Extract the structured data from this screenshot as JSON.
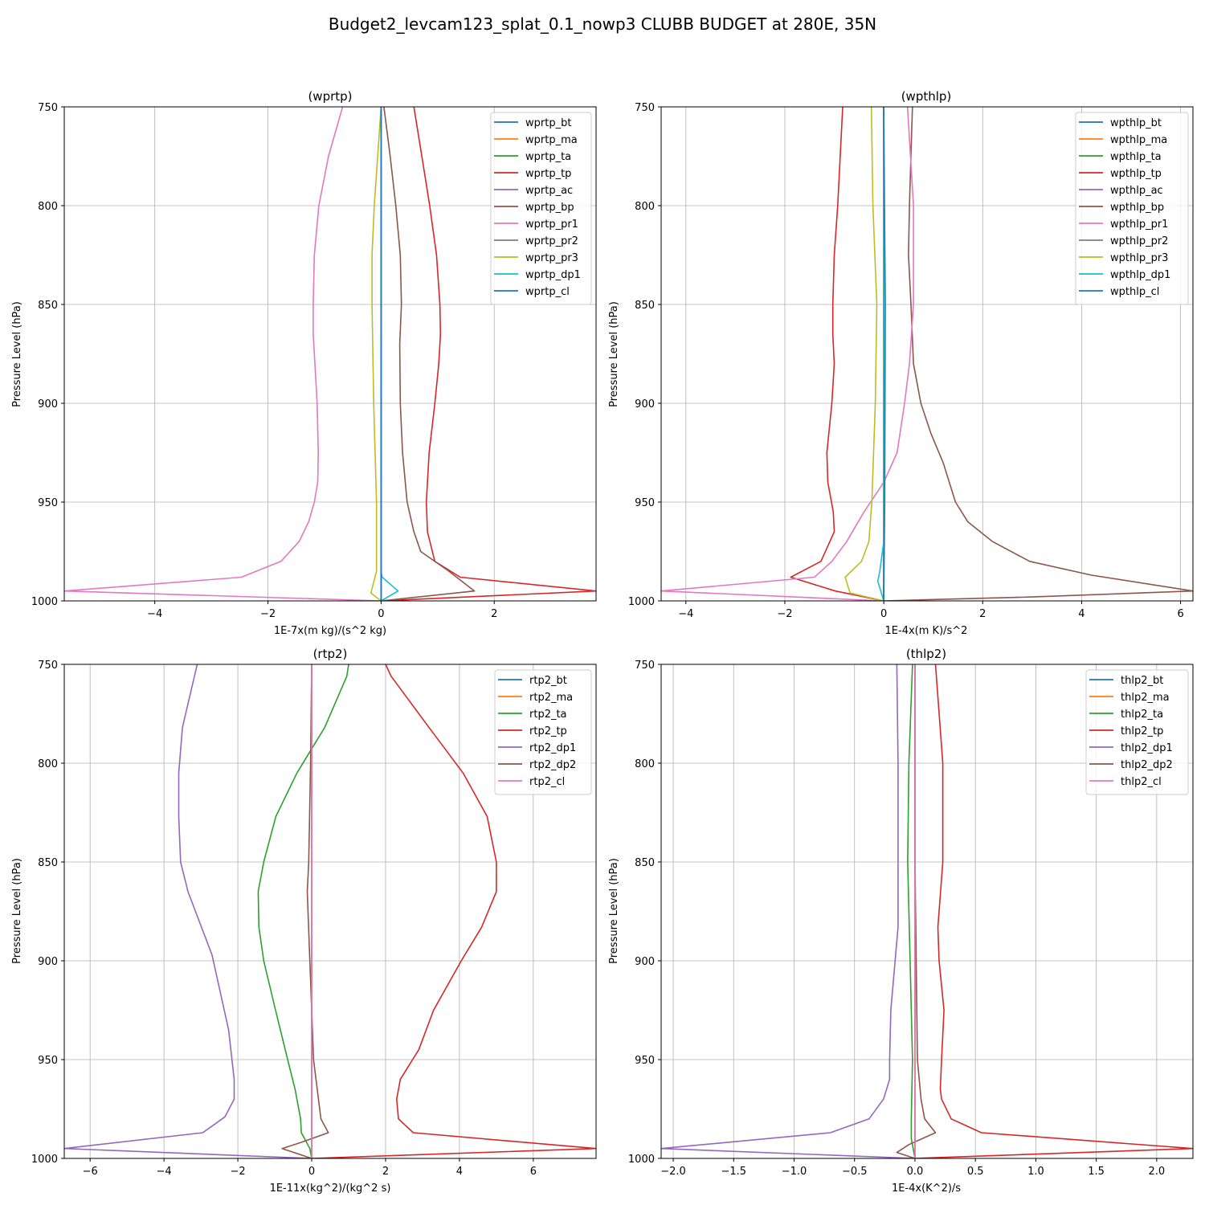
{
  "title": "Budget2_levcam123_splat_0.1_nowp3 CLUBB BUDGET at 280E, 35N",
  "chart_data": [
    {
      "type": "line",
      "title": "(wprtp)",
      "xlabel": "1E-7x(m kg)/(s^2 kg)",
      "ylabel": "Pressure Level (hPa)",
      "xlim": [
        -5.6,
        3.8
      ],
      "ylim": [
        1000,
        750
      ],
      "xticks": [
        -4,
        -2,
        0,
        2
      ],
      "xtick_labels": [
        "−4",
        "−2",
        "0",
        "2"
      ],
      "yticks": [
        750,
        800,
        850,
        900,
        950,
        1000
      ],
      "ytick_labels": [
        "750",
        "800",
        "850",
        "900",
        "950",
        "1000"
      ],
      "grid": true,
      "legend_loc": "upper right",
      "series": [
        {
          "name": "wprtp_bt",
          "color": "#1f77b4",
          "p": [
            750,
            1000
          ],
          "x": [
            0.0,
            0.0
          ]
        },
        {
          "name": "wprtp_ma",
          "color": "#ff7f0e",
          "p": [
            750,
            1000
          ],
          "x": [
            0.0,
            0.0
          ]
        },
        {
          "name": "wprtp_ta",
          "color": "#2ca02c",
          "p": [
            750,
            850,
            950,
            985,
            995,
            1000
          ],
          "x": [
            0.0,
            0.0,
            0.0,
            0.0,
            0.0,
            0.0
          ]
        },
        {
          "name": "wprtp_tp",
          "color": "#d62728",
          "p": [
            750,
            775,
            800,
            825,
            850,
            865,
            880,
            900,
            925,
            950,
            965,
            980,
            988,
            995,
            1000
          ],
          "x": [
            0.58,
            0.72,
            0.86,
            0.98,
            1.04,
            1.05,
            1.02,
            0.95,
            0.85,
            0.8,
            0.82,
            0.95,
            1.4,
            3.8,
            0.0
          ]
        },
        {
          "name": "wprtp_ac",
          "color": "#9467bd",
          "p": [
            750,
            1000
          ],
          "x": [
            0.0,
            0.0
          ]
        },
        {
          "name": "wprtp_bp",
          "color": "#8c564b",
          "p": [
            750,
            775,
            800,
            825,
            850,
            870,
            900,
            925,
            950,
            965,
            975,
            985,
            995,
            1000
          ],
          "x": [
            0.05,
            0.16,
            0.26,
            0.34,
            0.36,
            0.33,
            0.34,
            0.38,
            0.46,
            0.58,
            0.7,
            1.2,
            1.65,
            0.0
          ]
        },
        {
          "name": "wprtp_pr1",
          "color": "#e377c2",
          "p": [
            750,
            775,
            800,
            825,
            850,
            865,
            880,
            900,
            925,
            940,
            950,
            960,
            970,
            980,
            988,
            995,
            1000
          ],
          "x": [
            -0.68,
            -0.93,
            -1.1,
            -1.18,
            -1.2,
            -1.2,
            -1.17,
            -1.13,
            -1.11,
            -1.12,
            -1.18,
            -1.28,
            -1.45,
            -1.77,
            -2.47,
            -5.6,
            0.0
          ]
        },
        {
          "name": "wprtp_pr2",
          "color": "#7f7f7f",
          "p": [
            750,
            1000
          ],
          "x": [
            0.0,
            0.0
          ]
        },
        {
          "name": "wprtp_pr3",
          "color": "#bcbd22",
          "p": [
            750,
            800,
            825,
            850,
            900,
            950,
            985,
            996,
            1000
          ],
          "x": [
            0.0,
            -0.12,
            -0.16,
            -0.16,
            -0.13,
            -0.08,
            -0.08,
            -0.18,
            0.0
          ]
        },
        {
          "name": "wprtp_dp1",
          "color": "#17becf",
          "p": [
            750,
            985,
            988,
            995,
            1000
          ],
          "x": [
            0.0,
            0.0,
            0.02,
            0.3,
            0.0
          ]
        },
        {
          "name": "wprtp_cl",
          "color": "#1f77b4",
          "p": [
            750,
            1000
          ],
          "x": [
            0.0,
            0.0
          ]
        }
      ]
    },
    {
      "type": "line",
      "title": "(wpthlp)",
      "xlabel": "1E-4x(m K)/s^2",
      "ylabel": "Pressure Level (hPa)",
      "xlim": [
        -4.5,
        6.25
      ],
      "ylim": [
        1000,
        750
      ],
      "xticks": [
        -4,
        -2,
        0,
        2,
        4,
        6
      ],
      "xtick_labels": [
        "−4",
        "−2",
        "0",
        "2",
        "4",
        "6"
      ],
      "yticks": [
        750,
        800,
        850,
        900,
        950,
        1000
      ],
      "ytick_labels": [
        "750",
        "800",
        "850",
        "900",
        "950",
        "1000"
      ],
      "grid": true,
      "legend_loc": "upper right",
      "series": [
        {
          "name": "wpthlp_bt",
          "color": "#1f77b4",
          "p": [
            750,
            1000
          ],
          "x": [
            0.0,
            0.0
          ]
        },
        {
          "name": "wpthlp_ma",
          "color": "#ff7f0e",
          "p": [
            750,
            1000
          ],
          "x": [
            0.0,
            0.0
          ]
        },
        {
          "name": "wpthlp_ta",
          "color": "#2ca02c",
          "p": [
            750,
            850,
            950,
            1000
          ],
          "x": [
            0.0,
            0.0,
            0.0,
            0.0
          ]
        },
        {
          "name": "wpthlp_tp",
          "color": "#d62728",
          "p": [
            750,
            800,
            825,
            850,
            865,
            880,
            900,
            925,
            940,
            955,
            965,
            980,
            988,
            995,
            1000
          ],
          "x": [
            -0.83,
            -0.93,
            -1.0,
            -1.03,
            -1.03,
            -1.0,
            -1.05,
            -1.15,
            -1.13,
            -1.02,
            -1.0,
            -1.27,
            -1.88,
            -0.98,
            0.0
          ]
        },
        {
          "name": "wpthlp_ac",
          "color": "#9467bd",
          "p": [
            750,
            1000
          ],
          "x": [
            0.0,
            0.0
          ]
        },
        {
          "name": "wpthlp_bp",
          "color": "#8c564b",
          "p": [
            750,
            800,
            825,
            850,
            880,
            900,
            915,
            930,
            950,
            960,
            970,
            980,
            987,
            995,
            998,
            1000
          ],
          "x": [
            0.58,
            0.52,
            0.5,
            0.55,
            0.6,
            0.75,
            0.95,
            1.2,
            1.45,
            1.7,
            2.2,
            2.95,
            4.2,
            6.25,
            3.0,
            0.0
          ]
        },
        {
          "name": "wpthlp_pr1",
          "color": "#e377c2",
          "p": [
            750,
            800,
            850,
            880,
            900,
            925,
            940,
            955,
            970,
            980,
            988,
            995,
            1000
          ],
          "x": [
            0.48,
            0.6,
            0.6,
            0.52,
            0.42,
            0.27,
            0.0,
            -0.4,
            -0.75,
            -1.05,
            -1.4,
            -4.5,
            0.0
          ]
        },
        {
          "name": "wpthlp_pr2",
          "color": "#7f7f7f",
          "p": [
            750,
            1000
          ],
          "x": [
            0.0,
            0.0
          ]
        },
        {
          "name": "wpthlp_pr3",
          "color": "#bcbd22",
          "p": [
            750,
            800,
            850,
            900,
            950,
            970,
            980,
            988,
            996,
            1000
          ],
          "x": [
            -0.25,
            -0.22,
            -0.14,
            -0.17,
            -0.24,
            -0.3,
            -0.45,
            -0.78,
            -0.68,
            0.0
          ]
        },
        {
          "name": "wpthlp_dp1",
          "color": "#17becf",
          "p": [
            750,
            970,
            985,
            990,
            1000
          ],
          "x": [
            0.0,
            0.0,
            -0.08,
            -0.12,
            0.0
          ]
        },
        {
          "name": "wpthlp_cl",
          "color": "#1f77b4",
          "p": [
            750,
            850,
            950,
            1000
          ],
          "x": [
            0.0,
            0.03,
            0.02,
            0.0
          ]
        }
      ]
    },
    {
      "type": "line",
      "title": "(rtp2)",
      "xlabel": "1E-11x(kg^2)/(kg^2 s)",
      "ylabel": "Pressure Level (hPa)",
      "xlim": [
        -6.7,
        7.7
      ],
      "ylim": [
        1000,
        750
      ],
      "xticks": [
        -6,
        -4,
        -2,
        0,
        2,
        4,
        6
      ],
      "xtick_labels": [
        "−6",
        "−4",
        "−2",
        "0",
        "2",
        "4",
        "6"
      ],
      "yticks": [
        750,
        800,
        850,
        900,
        950,
        1000
      ],
      "ytick_labels": [
        "750",
        "800",
        "850",
        "900",
        "950",
        "1000"
      ],
      "grid": true,
      "legend_loc": "upper right",
      "series": [
        {
          "name": "rtp2_bt",
          "color": "#1f77b4",
          "p": [
            750,
            1000
          ],
          "x": [
            0.0,
            0.0
          ]
        },
        {
          "name": "rtp2_ma",
          "color": "#ff7f0e",
          "p": [
            750,
            1000
          ],
          "x": [
            0.0,
            0.0
          ]
        },
        {
          "name": "rtp2_ta",
          "color": "#2ca02c",
          "p": [
            750,
            756,
            782,
            805,
            827,
            850,
            865,
            883,
            900,
            925,
            950,
            965,
            980,
            987,
            995,
            1000
          ],
          "x": [
            1.0,
            0.95,
            0.35,
            -0.4,
            -0.97,
            -1.3,
            -1.45,
            -1.43,
            -1.3,
            -0.98,
            -0.65,
            -0.45,
            -0.3,
            -0.28,
            -0.05,
            0.0
          ]
        },
        {
          "name": "rtp2_tp",
          "color": "#d62728",
          "p": [
            750,
            756,
            780,
            805,
            827,
            850,
            865,
            883,
            900,
            925,
            945,
            960,
            970,
            980,
            987,
            995,
            1000
          ],
          "x": [
            2.0,
            2.15,
            3.1,
            4.1,
            4.75,
            5.0,
            5.0,
            4.6,
            4.05,
            3.3,
            2.9,
            2.4,
            2.3,
            2.35,
            2.75,
            7.7,
            0.0
          ]
        },
        {
          "name": "rtp2_dp1",
          "color": "#9467bd",
          "p": [
            750,
            782,
            805,
            827,
            850,
            865,
            897,
            935,
            960,
            970,
            979,
            987,
            995,
            1000
          ],
          "x": [
            -3.1,
            -3.5,
            -3.6,
            -3.6,
            -3.55,
            -3.35,
            -2.7,
            -2.25,
            -2.1,
            -2.1,
            -2.35,
            -2.95,
            -6.7,
            0.0
          ]
        },
        {
          "name": "rtp2_dp2",
          "color": "#8c564b",
          "p": [
            750,
            800,
            850,
            865,
            900,
            950,
            965,
            980,
            987,
            992,
            995,
            1000
          ],
          "x": [
            0.0,
            -0.03,
            -0.08,
            -0.12,
            -0.05,
            0.05,
            0.15,
            0.25,
            0.45,
            -0.3,
            -0.8,
            0.0
          ]
        },
        {
          "name": "rtp2_cl",
          "color": "#e377c2",
          "p": [
            750,
            1000
          ],
          "x": [
            0.0,
            0.0
          ]
        }
      ]
    },
    {
      "type": "line",
      "title": "(thlp2)",
      "xlabel": "1E-4x(K^2)/s",
      "ylabel": "Pressure Level (hPa)",
      "xlim": [
        -2.1,
        2.3
      ],
      "ylim": [
        1000,
        750
      ],
      "xticks": [
        -2.0,
        -1.5,
        -1.0,
        -0.5,
        0.0,
        0.5,
        1.0,
        1.5,
        2.0
      ],
      "xtick_labels": [
        "−2.0",
        "−1.5",
        "−1.0",
        "−0.5",
        "0.0",
        "0.5",
        "1.0",
        "1.5",
        "2.0"
      ],
      "yticks": [
        750,
        800,
        850,
        900,
        950,
        1000
      ],
      "ytick_labels": [
        "750",
        "800",
        "850",
        "900",
        "950",
        "1000"
      ],
      "grid": true,
      "legend_loc": "upper right",
      "series": [
        {
          "name": "thlp2_bt",
          "color": "#1f77b4",
          "p": [
            750,
            1000
          ],
          "x": [
            0.0,
            0.0
          ]
        },
        {
          "name": "thlp2_ma",
          "color": "#ff7f0e",
          "p": [
            750,
            1000
          ],
          "x": [
            0.0,
            0.0
          ]
        },
        {
          "name": "thlp2_ta",
          "color": "#2ca02c",
          "p": [
            750,
            800,
            850,
            900,
            950,
            980,
            990,
            1000
          ],
          "x": [
            -0.02,
            -0.05,
            -0.06,
            -0.04,
            -0.02,
            -0.03,
            -0.03,
            0.0
          ]
        },
        {
          "name": "thlp2_tp",
          "color": "#d62728",
          "p": [
            750,
            800,
            850,
            883,
            900,
            925,
            950,
            965,
            970,
            980,
            987,
            995,
            1000
          ],
          "x": [
            0.17,
            0.23,
            0.23,
            0.19,
            0.2,
            0.24,
            0.22,
            0.21,
            0.22,
            0.3,
            0.55,
            2.3,
            0.0
          ]
        },
        {
          "name": "thlp2_dp1",
          "color": "#9467bd",
          "p": [
            750,
            800,
            850,
            883,
            925,
            950,
            960,
            970,
            980,
            987,
            995,
            1000
          ],
          "x": [
            -0.15,
            -0.14,
            -0.14,
            -0.14,
            -0.2,
            -0.21,
            -0.21,
            -0.26,
            -0.38,
            -0.7,
            -2.1,
            0.0
          ]
        },
        {
          "name": "thlp2_dp2",
          "color": "#8c564b",
          "p": [
            750,
            850,
            950,
            970,
            980,
            987,
            993,
            997,
            1000
          ],
          "x": [
            0.0,
            0.0,
            0.02,
            0.05,
            0.08,
            0.17,
            -0.05,
            -0.15,
            0.0
          ]
        },
        {
          "name": "thlp2_cl",
          "color": "#e377c2",
          "p": [
            750,
            1000
          ],
          "x": [
            0.0,
            0.0
          ]
        }
      ]
    }
  ]
}
